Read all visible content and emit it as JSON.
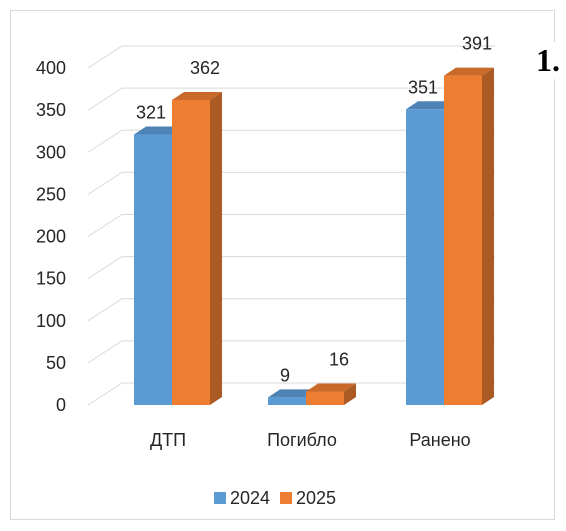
{
  "side_number": "1.",
  "chart_data": {
    "type": "bar",
    "categories": [
      "ДТП",
      "Погибло",
      "Ранено"
    ],
    "series": [
      {
        "name": "2024",
        "values": [
          321,
          9,
          351
        ],
        "color": "#5b9bd5"
      },
      {
        "name": "2025",
        "values": [
          362,
          16,
          391
        ],
        "color": "#ed7d31"
      }
    ],
    "ylim": [
      0,
      400
    ],
    "yticks": [
      0,
      50,
      100,
      150,
      200,
      250,
      300,
      350,
      400
    ],
    "grid": true,
    "legend": "bottom",
    "title": "",
    "xlabel": "",
    "ylabel": ""
  }
}
